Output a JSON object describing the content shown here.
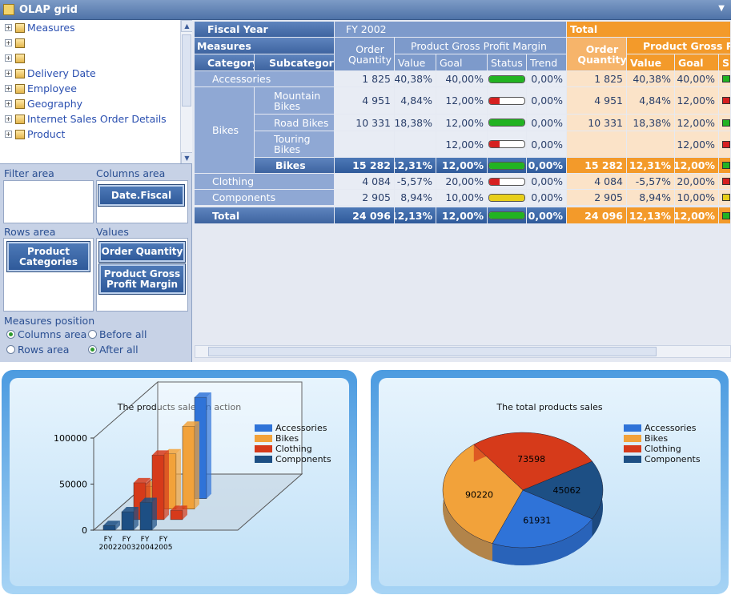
{
  "window": {
    "title": "OLAP grid"
  },
  "tree": {
    "items": [
      {
        "label": "Measures",
        "pm": "+"
      },
      {
        "label": "",
        "pm": "+"
      },
      {
        "label": "",
        "pm": "+"
      },
      {
        "label": "Delivery Date",
        "pm": "+"
      },
      {
        "label": "Employee",
        "pm": "+"
      },
      {
        "label": "Geography",
        "pm": "+"
      },
      {
        "label": "Internet Sales Order Details",
        "pm": "+"
      },
      {
        "label": "Product",
        "pm": "+"
      }
    ]
  },
  "zones": {
    "filter": "Filter area",
    "columns": "Columns area",
    "rows": "Rows area",
    "values": "Values",
    "columns_field": "Date.Fiscal",
    "rows_field": "Product Categories",
    "value_fields": [
      "Order Quantity",
      "Product Gross Profit Margin"
    ]
  },
  "measures_position": {
    "label": "Measures position",
    "columns_area": "Columns area",
    "before_all": "Before all",
    "rows_area": "Rows area",
    "after_all": "After all",
    "selected": [
      "columns_area",
      "after_all"
    ]
  },
  "grid": {
    "fiscal_year": "Fiscal Year",
    "fy": "FY 2002",
    "total": "Total",
    "measures": "Measures",
    "category": "Category",
    "subcategory": "Subcategory",
    "order_quantity": "Order Quantity",
    "pgpm": "Product Gross Profit Margin",
    "pgpm_cut": "Product Gross Pr",
    "value": "Value",
    "goal": "Goal",
    "status": "Status",
    "trend": "Trend",
    "s_cut": "S",
    "rows": [
      {
        "label": "Accessories",
        "oq": "1 825",
        "val": "40,38%",
        "goal": "40,00%",
        "status": "green",
        "level": 1,
        "trend": "0,00%",
        "toq": "1 825",
        "tval": "40,38%",
        "tgoal": "40,00%"
      },
      {
        "label": "Mountain Bikes",
        "oq": "4 951",
        "val": "4,84%",
        "goal": "12,00%",
        "status": "red",
        "level": 0.3,
        "trend": "0,00%",
        "toq": "4 951",
        "tval": "4,84%",
        "tgoal": "12,00%"
      },
      {
        "label": "Road Bikes",
        "oq": "10 331",
        "val": "18,38%",
        "goal": "12,00%",
        "status": "green",
        "level": 1,
        "trend": "0,00%",
        "toq": "10 331",
        "tval": "18,38%",
        "tgoal": "12,00%"
      },
      {
        "label": "Touring Bikes",
        "oq": "",
        "val": "",
        "goal": "12,00%",
        "status": "red",
        "level": 0.3,
        "trend": "0,00%",
        "toq": "",
        "tval": "",
        "tgoal": "12,00%"
      },
      {
        "label": "Bikes",
        "oq": "15 282",
        "val": "12,31%",
        "goal": "12,00%",
        "status": "green",
        "level": 1,
        "trend": "0,00%",
        "toq": "15 282",
        "tval": "12,31%",
        "tgoal": "12,00%"
      },
      {
        "label": "Clothing",
        "oq": "4 084",
        "val": "-5,57%",
        "goal": "20,00%",
        "status": "red",
        "level": 0.3,
        "trend": "0,00%",
        "toq": "4 084",
        "tval": "-5,57%",
        "tgoal": "20,00%"
      },
      {
        "label": "Components",
        "oq": "2 905",
        "val": "8,94%",
        "goal": "10,00%",
        "status": "yellow",
        "level": 1,
        "trend": "0,00%",
        "toq": "2 905",
        "tval": "8,94%",
        "tgoal": "10,00%"
      },
      {
        "label": "Total",
        "oq": "24 096",
        "val": "12,13%",
        "goal": "12,00%",
        "status": "green",
        "level": 1,
        "trend": "0,00%",
        "toq": "24 096",
        "tval": "12,13%",
        "tgoal": "12,00%"
      }
    ],
    "bikes_group": "Bikes"
  },
  "chart_data": [
    {
      "type": "bar",
      "title": "The products sales in action",
      "categories": [
        "FY 2002",
        "FY 2003",
        "FY 2004",
        "FY 2005"
      ],
      "ylim": [
        0,
        100000
      ],
      "yticks": [
        "100000",
        "50000",
        "0"
      ],
      "series": [
        {
          "name": "Accessories",
          "values": [
            0,
            0,
            0,
            110000
          ]
        },
        {
          "name": "Bikes",
          "values": [
            0,
            25000,
            60000,
            90000
          ]
        },
        {
          "name": "Clothing",
          "values": [
            0,
            40000,
            70000,
            10000
          ]
        },
        {
          "name": "Components",
          "values": [
            5000,
            20000,
            30000,
            0
          ]
        }
      ]
    },
    {
      "type": "pie",
      "title": "The total products sales",
      "series": [
        {
          "name": "Accessories",
          "value": 61931
        },
        {
          "name": "Bikes",
          "value": 90220
        },
        {
          "name": "Clothing",
          "value": 73598
        },
        {
          "name": "Components",
          "value": 45062
        }
      ],
      "labels": [
        "73598",
        "90220",
        "61931",
        "45062"
      ]
    }
  ],
  "colors": {
    "accessories": "#2f73d8",
    "bikes": "#f2a23a",
    "clothing": "#d63a1a",
    "components": "#1d4f84"
  }
}
